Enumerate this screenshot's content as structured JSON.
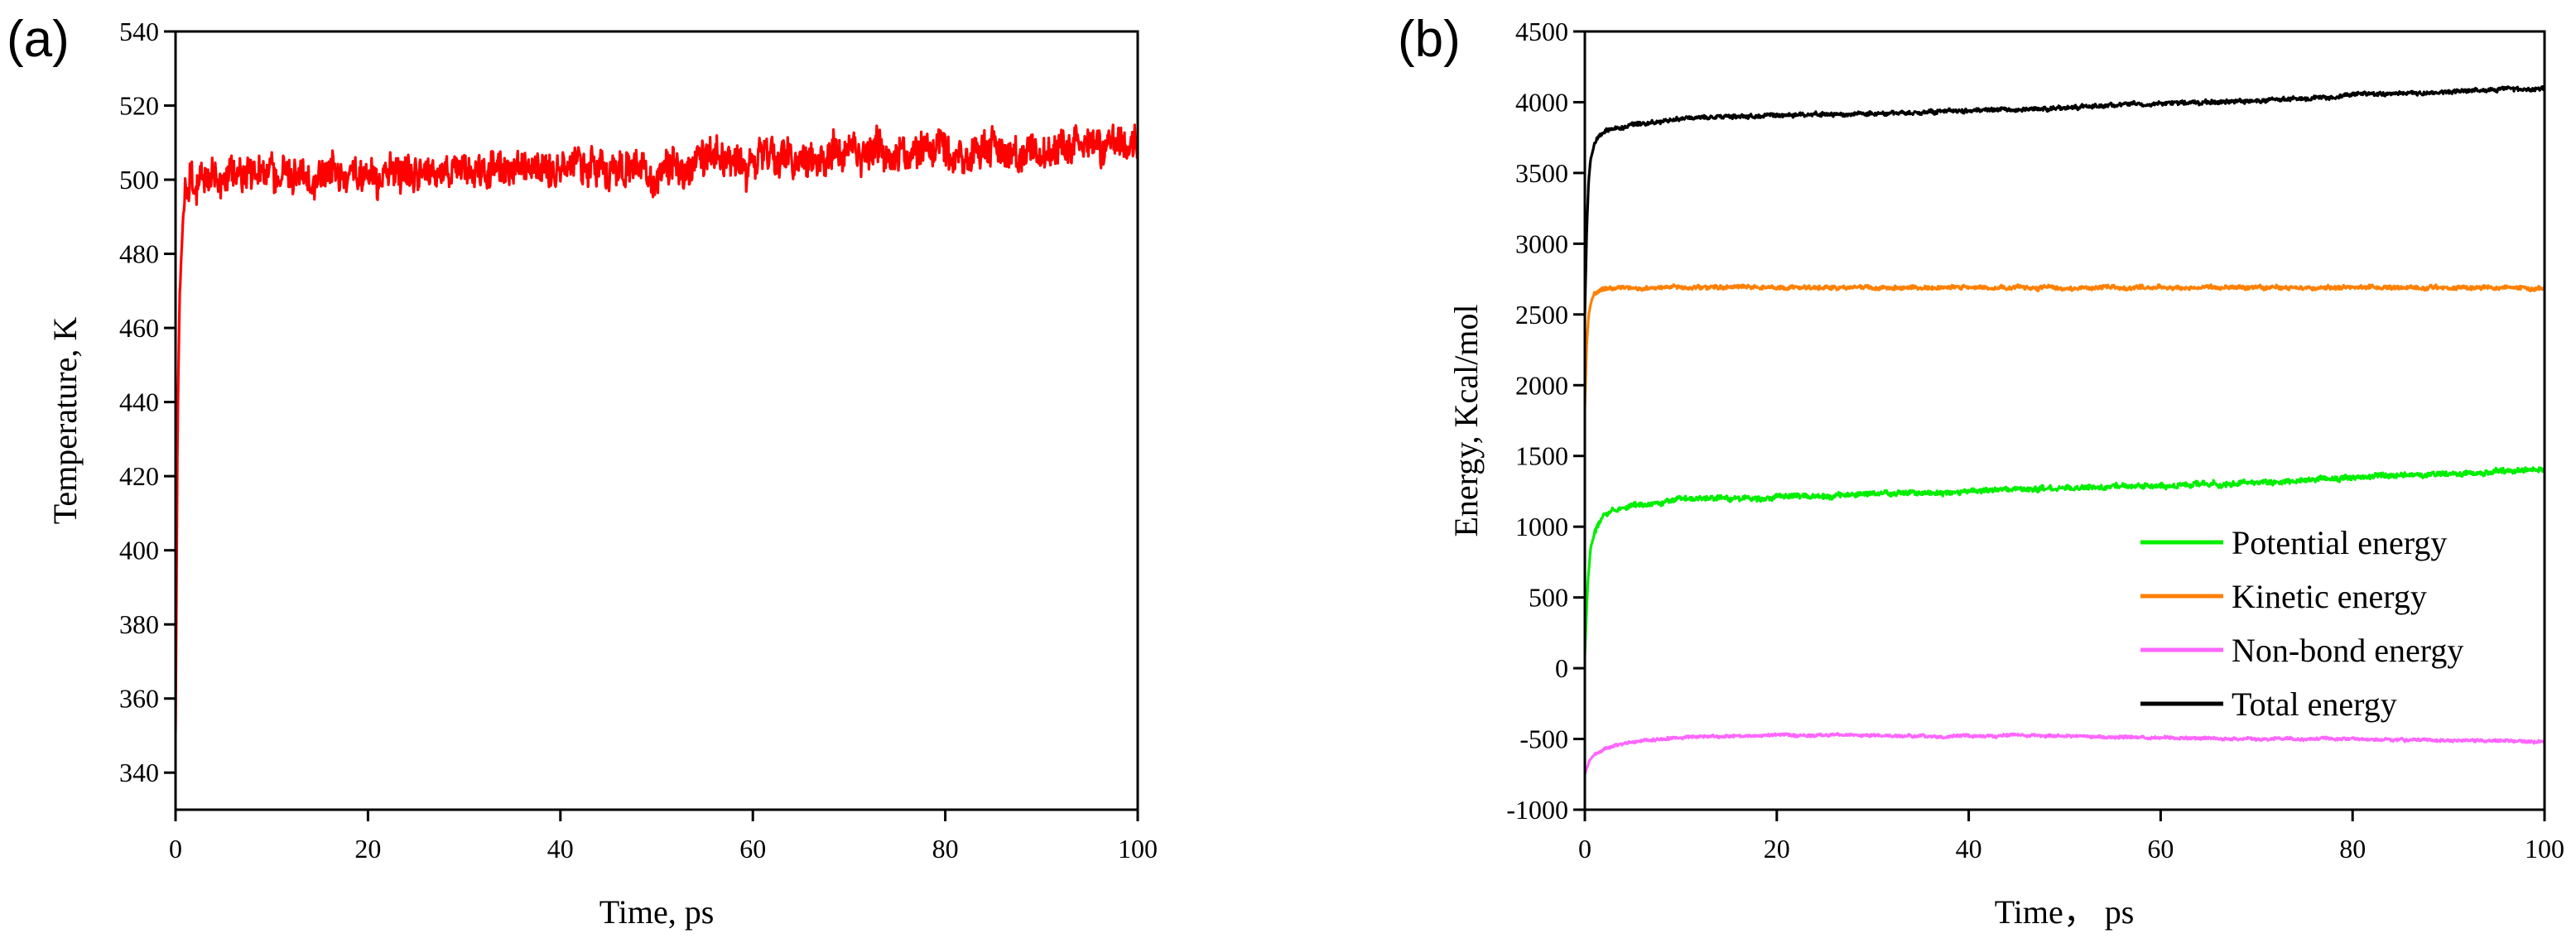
{
  "chart_data": [
    {
      "type": "line",
      "panel_label": "(a)",
      "title": "",
      "xlabel": "Time, ps",
      "ylabel": "Temperature, K",
      "xlim": [
        0,
        100
      ],
      "ylim": [
        330,
        540
      ],
      "x_ticks": [
        "0",
        "20",
        "40",
        "60",
        "80",
        "100"
      ],
      "y_ticks": [
        "340",
        "360",
        "380",
        "400",
        "420",
        "440",
        "460",
        "480",
        "500",
        "520",
        "540"
      ],
      "grid": false,
      "legend": "none",
      "series": [
        {
          "name": "Temperature",
          "color": "#ff0000",
          "x": [
            0,
            0.2,
            0.4,
            0.6,
            0.8,
            1,
            1.5,
            2,
            3,
            5,
            10,
            15,
            20,
            25,
            30,
            35,
            40,
            45,
            50,
            55,
            60,
            65,
            70,
            75,
            80,
            85,
            90,
            95,
            100
          ],
          "y": [
            350,
            430,
            465,
            480,
            490,
            495,
            499,
            500,
            501,
            501,
            501,
            501,
            502,
            502,
            502,
            503,
            503,
            503,
            503,
            504,
            505,
            506,
            507,
            507,
            508,
            508,
            508,
            509,
            510
          ],
          "noise": 4
        }
      ]
    },
    {
      "type": "line",
      "panel_label": "(b)",
      "title": "",
      "xlabel": "Time， ps",
      "ylabel": "Energy, Kcal/mol",
      "xlim": [
        0,
        100
      ],
      "ylim": [
        -1000,
        4500
      ],
      "x_ticks": [
        "0",
        "20",
        "40",
        "60",
        "80",
        "100"
      ],
      "y_ticks": [
        "-1000",
        "-500",
        "0",
        "500",
        "1000",
        "1500",
        "2000",
        "2500",
        "3000",
        "3500",
        "4000",
        "4500"
      ],
      "grid": false,
      "legend": "center-right",
      "series": [
        {
          "name": "Potential energy",
          "color": "#00ee00",
          "x": [
            0,
            0.3,
            0.6,
            1,
            1.5,
            2,
            3,
            5,
            10,
            15,
            20,
            25,
            30,
            35,
            40,
            45,
            50,
            55,
            60,
            65,
            70,
            75,
            80,
            85,
            90,
            95,
            100
          ],
          "y": [
            100,
            600,
            850,
            950,
            1030,
            1080,
            1120,
            1150,
            1190,
            1200,
            1210,
            1220,
            1230,
            1240,
            1250,
            1260,
            1270,
            1280,
            1290,
            1300,
            1310,
            1330,
            1350,
            1360,
            1370,
            1390,
            1410
          ],
          "noise": 15
        },
        {
          "name": "Kinetic energy",
          "color": "#ff8000",
          "x": [
            0,
            0.2,
            0.4,
            0.7,
            1,
            1.5,
            2,
            3,
            5,
            10,
            20,
            30,
            40,
            50,
            60,
            70,
            80,
            90,
            100
          ],
          "y": [
            1850,
            2300,
            2500,
            2600,
            2650,
            2675,
            2685,
            2690,
            2690,
            2690,
            2690,
            2690,
            2690,
            2690,
            2690,
            2690,
            2690,
            2690,
            2690
          ],
          "noise": 12
        },
        {
          "name": "Non-bond energy",
          "color": "#ff66ff",
          "x": [
            0,
            0.5,
            1,
            2,
            3,
            5,
            10,
            15,
            20,
            25,
            30,
            35,
            40,
            45,
            50,
            55,
            60,
            65,
            70,
            75,
            80,
            85,
            90,
            95,
            100
          ],
          "y": [
            -750,
            -650,
            -610,
            -570,
            -550,
            -520,
            -490,
            -480,
            -475,
            -470,
            -475,
            -480,
            -480,
            -475,
            -480,
            -485,
            -490,
            -495,
            -500,
            -500,
            -500,
            -505,
            -510,
            -515,
            -520
          ],
          "noise": 8
        },
        {
          "name": "Total energy",
          "color": "#000000",
          "x": [
            0,
            0.2,
            0.4,
            0.6,
            1,
            1.5,
            2,
            3,
            5,
            10,
            15,
            20,
            25,
            30,
            35,
            40,
            45,
            50,
            55,
            60,
            65,
            70,
            75,
            80,
            85,
            90,
            95,
            100
          ],
          "y": [
            2500,
            3100,
            3450,
            3600,
            3700,
            3760,
            3790,
            3810,
            3840,
            3880,
            3900,
            3910,
            3915,
            3920,
            3930,
            3940,
            3950,
            3960,
            3980,
            3990,
            4000,
            4010,
            4030,
            4050,
            4060,
            4070,
            4090,
            4100
          ],
          "noise": 12
        }
      ]
    }
  ]
}
